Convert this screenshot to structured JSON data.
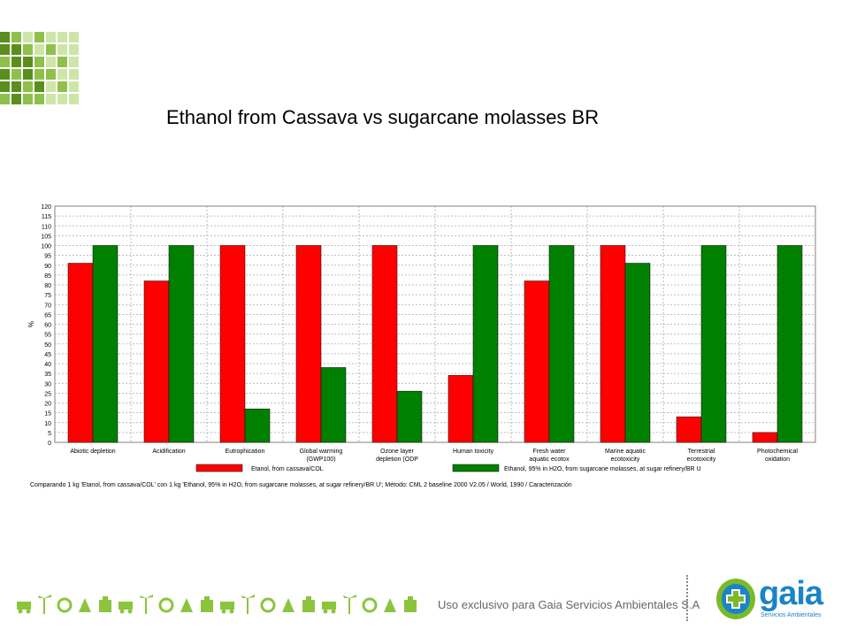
{
  "slide": {
    "title": "Ethanol from Cassava vs sugarcane molasses BR",
    "footer_text": "Uso exclusivo para Gaia Servicios Ambientales S.A",
    "logo_word": "gaia",
    "logo_sub": "Servicios Ambientales"
  },
  "chart_data": {
    "type": "bar",
    "title": "",
    "xlabel": "",
    "ylabel": "%",
    "ylim": [
      0,
      120
    ],
    "ytick_step": 5,
    "grid": true,
    "legend_position": "bottom",
    "categories": [
      [
        "Abiotic depletion"
      ],
      [
        "Acidification"
      ],
      [
        "Eutrophication"
      ],
      [
        "Global warming",
        "(GWP100)"
      ],
      [
        "Ozone layer",
        "depletion (ODP"
      ],
      [
        "Human toxicity"
      ],
      [
        "Fresh water",
        "aquatic ecotox"
      ],
      [
        "Marine aquatic",
        "ecotoxicity"
      ],
      [
        "Terrestrial",
        "ecotoxicity"
      ],
      [
        "Photochemical",
        "oxidation"
      ]
    ],
    "series": [
      {
        "name": "Etanol, from cassava/COL",
        "color": "#ff0000",
        "values": [
          91,
          82,
          100,
          100,
          100,
          34,
          82,
          100,
          13,
          5
        ]
      },
      {
        "name": "Ethanol, 95% in H2O, from sugarcane molasses, at sugar refinery/BR U",
        "color": "#008000",
        "values": [
          100,
          100,
          17,
          38,
          26,
          100,
          100,
          91,
          100,
          100
        ]
      }
    ],
    "caption": "Comparando 1 kg 'Etanol, from cassava/COL' con 1 kg 'Ethanol, 95% in H2O, from sugarcane molasses, at sugar refinery/BR U';  Método: CML 2 baseline 2000 V2.05 /  World, 1990 / Caracterización"
  },
  "colors": {
    "mosaic_dark": "#5a8f1e",
    "mosaic_mid": "#8fc04a",
    "mosaic_light": "#cde6a8",
    "icons": "#8cc43e",
    "logo_blue": "#1b84c6",
    "logo_green": "#7ab929"
  },
  "icons": [
    "truck-icon",
    "wind-turbine-icon",
    "recycle-icon",
    "plant-icon",
    "factory-icon",
    "cart-icon",
    "bin-icon",
    "palm-icon",
    "plane-icon",
    "tree-icon",
    "bulb-icon",
    "bus-icon",
    "bicycle-icon",
    "house-icon",
    "globe-icon",
    "person-icon",
    "car-icon",
    "wrench-icon",
    "sun-icon",
    "boat-icon"
  ]
}
